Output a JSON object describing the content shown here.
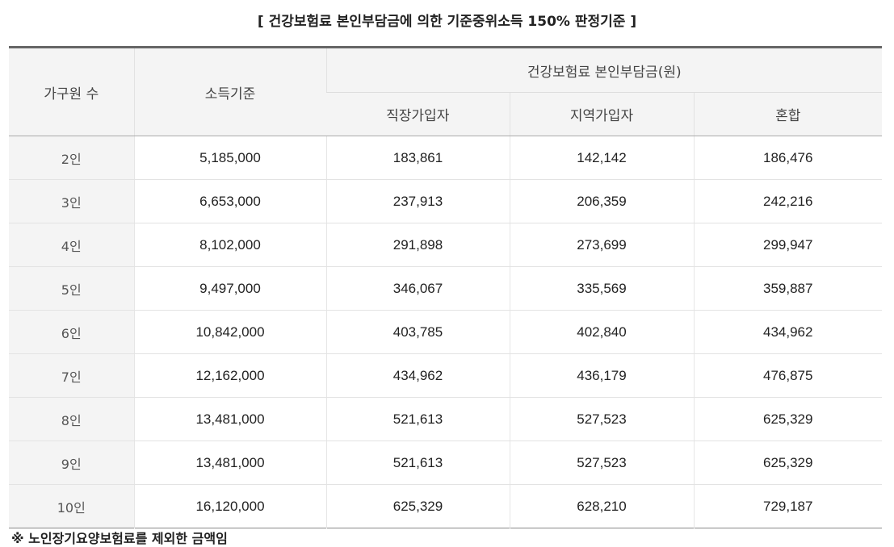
{
  "title": "[ 건강보험료 본인부담금에 의한 기준중위소득 150% 판정기준 ]",
  "table": {
    "headers": {
      "members": "가구원 수",
      "income": "소득기준",
      "premium_group": "건강보험료 본인부담금(원)",
      "employee": "직장가입자",
      "regional": "지역가입자",
      "mixed": "혼합"
    },
    "rows": [
      {
        "members": "2인",
        "income": "5,185,000",
        "employee": "183,861",
        "regional": "142,142",
        "mixed": "186,476"
      },
      {
        "members": "3인",
        "income": "6,653,000",
        "employee": "237,913",
        "regional": "206,359",
        "mixed": "242,216"
      },
      {
        "members": "4인",
        "income": "8,102,000",
        "employee": "291,898",
        "regional": "273,699",
        "mixed": "299,947"
      },
      {
        "members": "5인",
        "income": "9,497,000",
        "employee": "346,067",
        "regional": "335,569",
        "mixed": "359,887"
      },
      {
        "members": "6인",
        "income": "10,842,000",
        "employee": "403,785",
        "regional": "402,840",
        "mixed": "434,962"
      },
      {
        "members": "7인",
        "income": "12,162,000",
        "employee": "434,962",
        "regional": "436,179",
        "mixed": "476,875"
      },
      {
        "members": "8인",
        "income": "13,481,000",
        "employee": "521,613",
        "regional": "527,523",
        "mixed": "625,329"
      },
      {
        "members": "9인",
        "income": "13,481,000",
        "employee": "521,613",
        "regional": "527,523",
        "mixed": "625,329"
      },
      {
        "members": "10인",
        "income": "16,120,000",
        "employee": "625,329",
        "regional": "628,210",
        "mixed": "729,187"
      }
    ]
  },
  "note": "※ 노인장기요양보험료를 제외한 금액임"
}
